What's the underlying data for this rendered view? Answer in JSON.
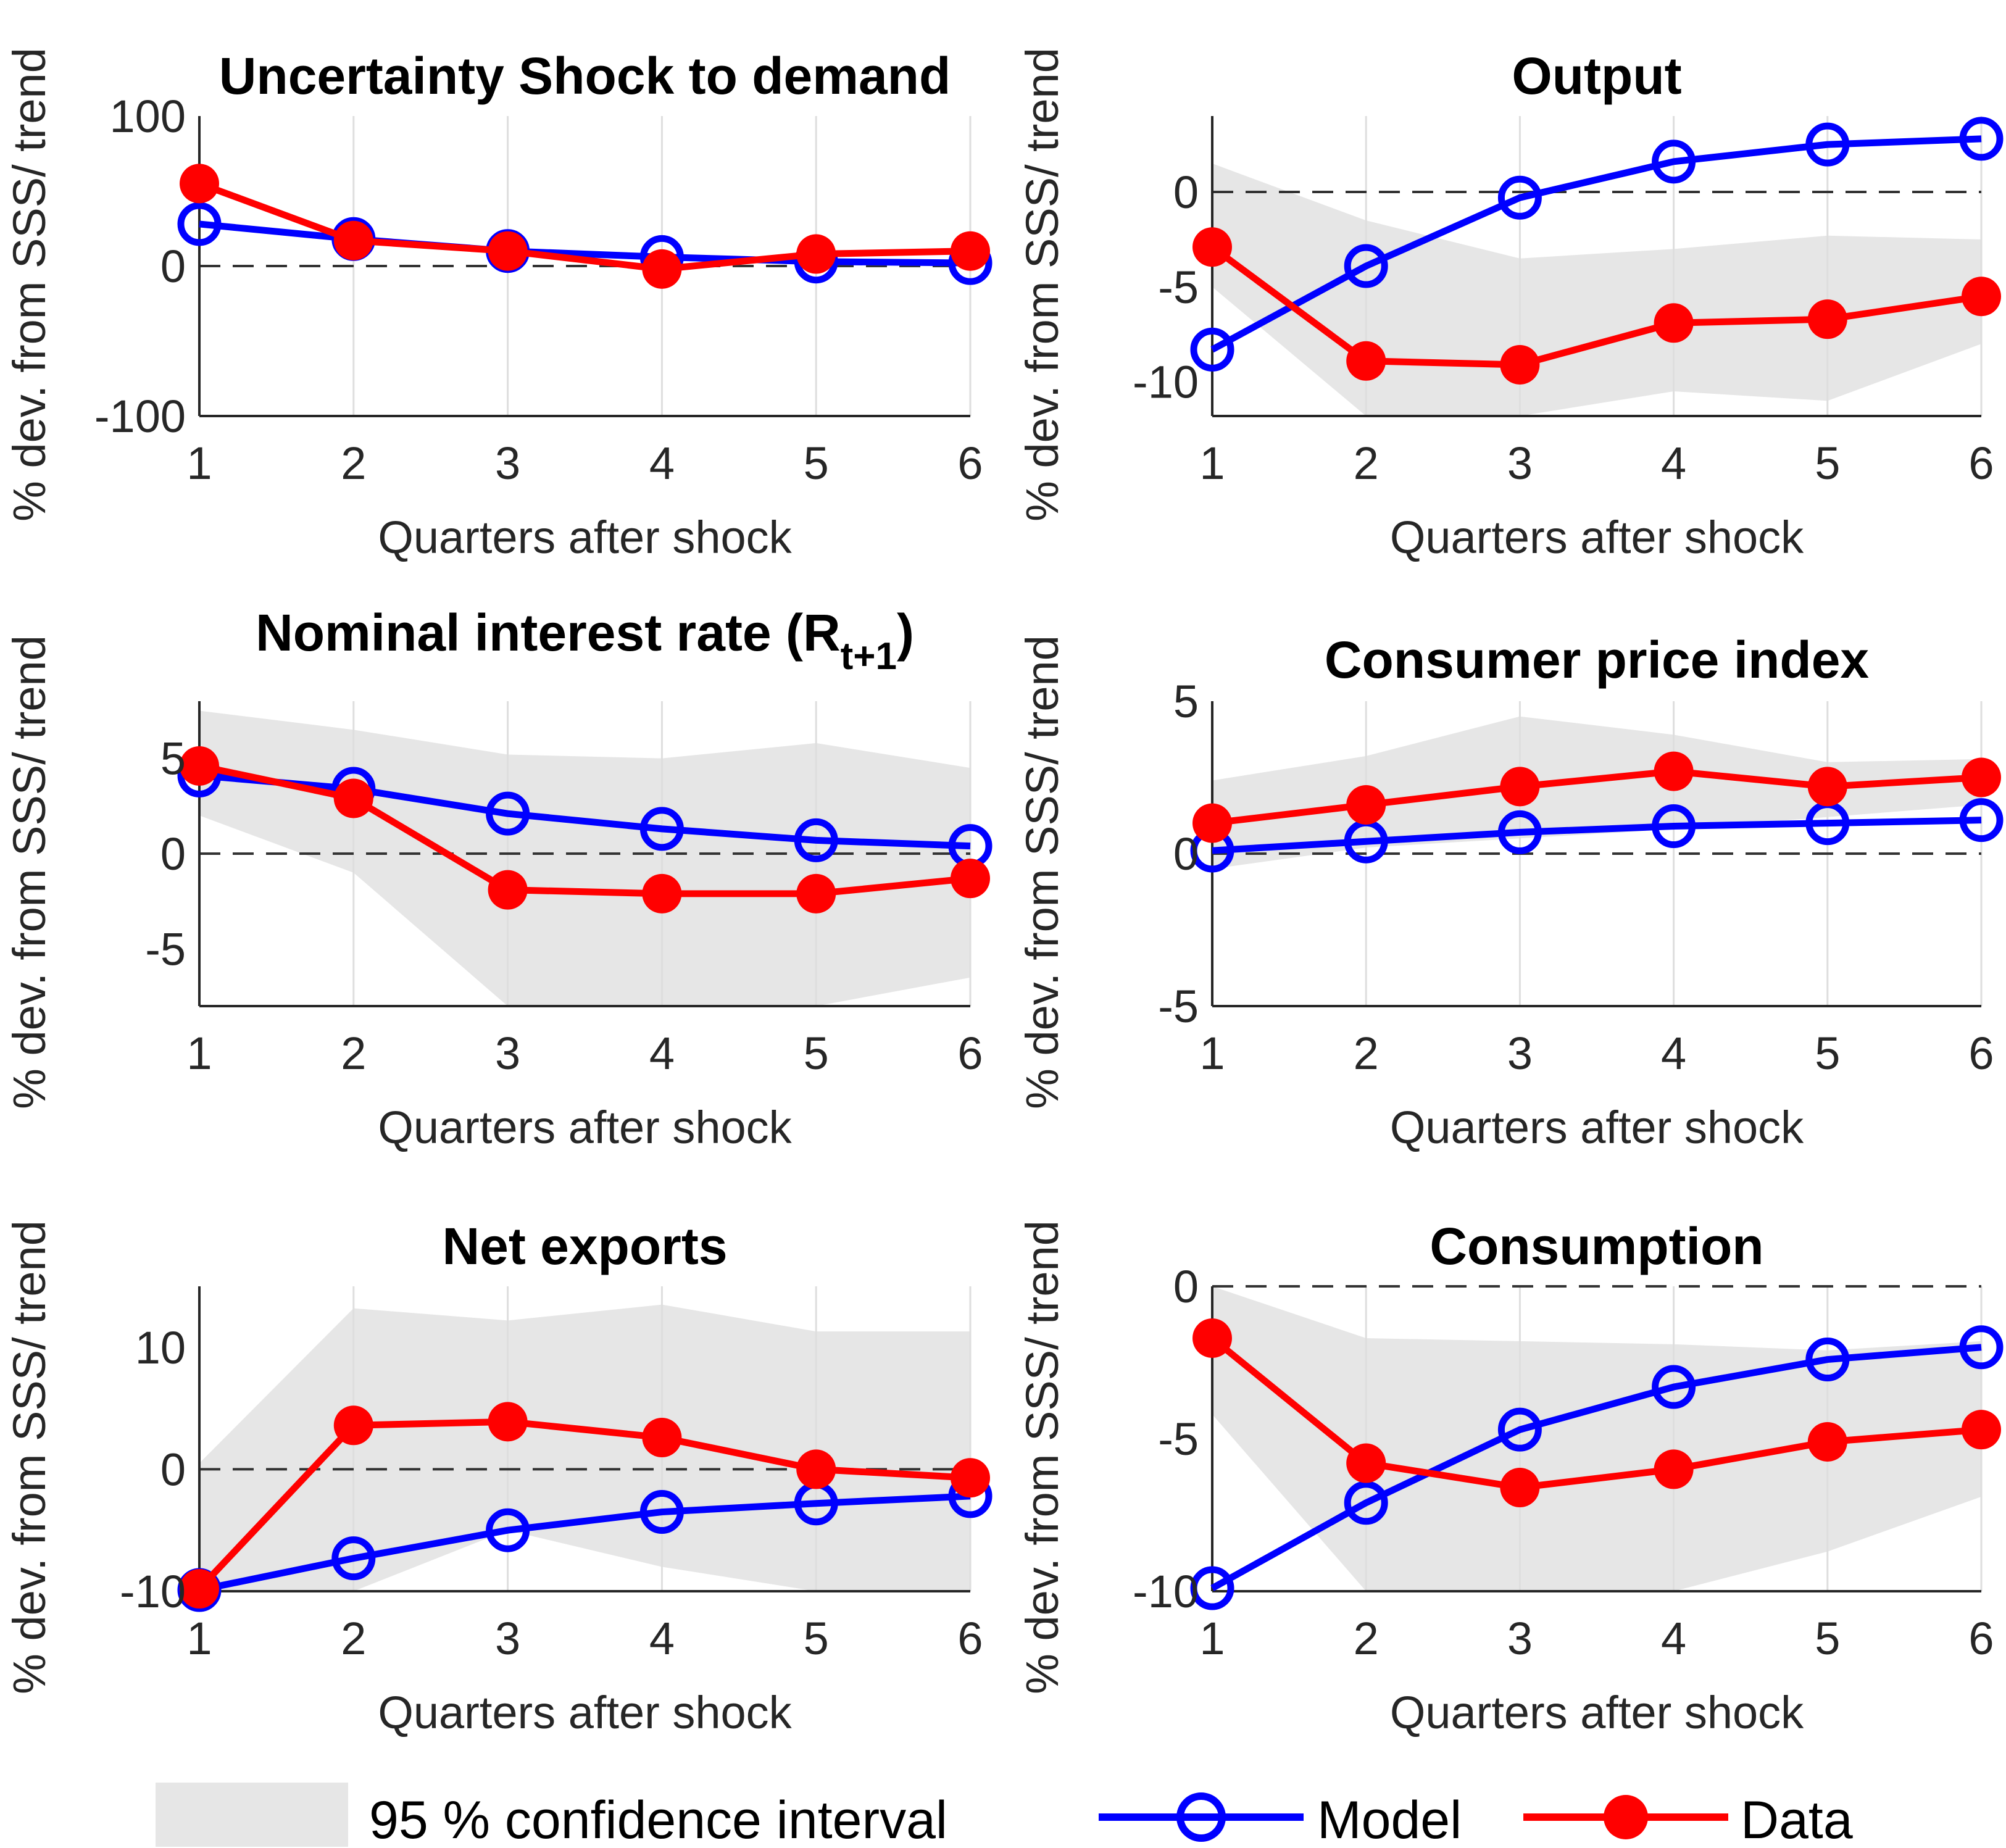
{
  "colors": {
    "model": "#0000ff",
    "data": "#ff0000",
    "ci": "#e6e6e6",
    "grid": "#dedede",
    "axis": "#262626"
  },
  "legend": {
    "ci_label": "95 % confidence interval",
    "model_label": "Model",
    "data_label": "Data"
  },
  "chart_data": [
    {
      "type": "line",
      "title": "Uncertainty Shock to demand",
      "xlabel": "Quarters after shock",
      "ylabel": "% dev. from SSS/ trend",
      "x": [
        1,
        2,
        3,
        4,
        5,
        6
      ],
      "xticks": [
        "1",
        "2",
        "3",
        "4",
        "5",
        "6"
      ],
      "ylim": [
        -100,
        100
      ],
      "yticks": [
        -100,
        0,
        100
      ],
      "ytick_labels": [
        "-100",
        "0",
        "100"
      ],
      "ci": null,
      "series": [
        {
          "name": "Model",
          "values": [
            28,
            18,
            10,
            6,
            3,
            2
          ]
        },
        {
          "name": "Data",
          "values": [
            55,
            17,
            10,
            -2,
            8,
            10
          ]
        }
      ]
    },
    {
      "type": "line",
      "title": "Output",
      "xlabel": "Quarters after shock",
      "ylabel": "% dev. from SSS/ trend",
      "x": [
        1,
        2,
        3,
        4,
        5,
        6
      ],
      "xticks": [
        "1",
        "2",
        "3",
        "4",
        "5",
        "6"
      ],
      "ylim": [
        -11.8,
        4
      ],
      "yticks": [
        -10,
        -5,
        0
      ],
      "ytick_labels": [
        "-10",
        "-5",
        "0"
      ],
      "ci": {
        "lower": [
          -5,
          -11.8,
          -11.8,
          -10.5,
          -11,
          -8
        ],
        "upper": [
          1.5,
          -1.5,
          -3.5,
          -3,
          -2.3,
          -2.5
        ]
      },
      "series": [
        {
          "name": "Model",
          "values": [
            -8.3,
            -3.9,
            -0.3,
            1.6,
            2.5,
            2.8
          ]
        },
        {
          "name": "Data",
          "values": [
            -2.9,
            -8.9,
            -9.1,
            -6.9,
            -6.7,
            -5.5
          ]
        }
      ]
    },
    {
      "type": "line",
      "title": "Nominal interest rate (R",
      "title_subscript": "t+1",
      "title_suffix": ")",
      "xlabel": "Quarters after shock",
      "ylabel": "% dev. from SSS/ trend",
      "x": [
        1,
        2,
        3,
        4,
        5,
        6
      ],
      "xticks": [
        "1",
        "2",
        "3",
        "4",
        "5",
        "6"
      ],
      "ylim": [
        -8,
        8
      ],
      "yticks": [
        -5,
        0,
        5
      ],
      "ytick_labels": [
        "-5",
        "0",
        "5"
      ],
      "ci": {
        "lower": [
          2,
          -1,
          -8,
          -8,
          -8,
          -6.5
        ],
        "upper": [
          7.5,
          6.5,
          5.2,
          5,
          5.8,
          4.5
        ]
      },
      "series": [
        {
          "name": "Model",
          "values": [
            4.1,
            3.4,
            2.1,
            1.3,
            0.7,
            0.4
          ]
        },
        {
          "name": "Data",
          "values": [
            4.6,
            2.9,
            -1.9,
            -2.1,
            -2.1,
            -1.3
          ]
        }
      ]
    },
    {
      "type": "line",
      "title": "Consumer price index",
      "xlabel": "Quarters after shock",
      "ylabel": "% dev. from SSS/ trend",
      "x": [
        1,
        2,
        3,
        4,
        5,
        6
      ],
      "xticks": [
        "1",
        "2",
        "3",
        "4",
        "5",
        "6"
      ],
      "ylim": [
        -5,
        5
      ],
      "yticks": [
        -5,
        0,
        5
      ],
      "ytick_labels": [
        "-5",
        "0",
        "5"
      ],
      "ci": {
        "lower": [
          -0.5,
          0.2,
          0.5,
          0.8,
          1.2,
          1.6
        ],
        "upper": [
          2.4,
          3.2,
          4.5,
          3.9,
          3.0,
          3.1
        ]
      },
      "series": [
        {
          "name": "Model",
          "values": [
            0.1,
            0.4,
            0.7,
            0.9,
            1.0,
            1.1
          ]
        },
        {
          "name": "Data",
          "values": [
            1.0,
            1.6,
            2.2,
            2.7,
            2.2,
            2.5
          ]
        }
      ]
    },
    {
      "type": "line",
      "title": "Net exports",
      "xlabel": "Quarters after shock",
      "ylabel": "% dev. from SSS/ trend",
      "x": [
        1,
        2,
        3,
        4,
        5,
        6
      ],
      "xticks": [
        "1",
        "2",
        "3",
        "4",
        "5",
        "6"
      ],
      "ylim": [
        -10,
        15
      ],
      "yticks": [
        -10,
        0,
        10
      ],
      "ytick_labels": [
        "-10",
        "0",
        "10"
      ],
      "ci": {
        "lower": [
          -10,
          -10,
          -5,
          -8,
          -10,
          -10
        ],
        "upper": [
          0.5,
          13.2,
          12.2,
          13.5,
          11.3,
          11.3
        ]
      },
      "series": [
        {
          "name": "Model",
          "values": [
            -9.9,
            -7.3,
            -5.0,
            -3.5,
            -2.8,
            -2.2
          ]
        },
        {
          "name": "Data",
          "values": [
            -9.8,
            3.6,
            3.9,
            2.6,
            0,
            -0.7
          ]
        }
      ]
    },
    {
      "type": "line",
      "title": "Consumption",
      "xlabel": "Quarters after shock",
      "ylabel": "% dev. from SSS/ trend",
      "x": [
        1,
        2,
        3,
        4,
        5,
        6
      ],
      "xticks": [
        "1",
        "2",
        "3",
        "4",
        "5",
        "6"
      ],
      "ylim": [
        -10,
        0
      ],
      "yticks": [
        -10,
        -5,
        0
      ],
      "ytick_labels": [
        "-10",
        "-5",
        "0"
      ],
      "ci": {
        "lower": [
          -4.2,
          -10,
          -10,
          -10,
          -8.7,
          -6.9
        ],
        "upper": [
          0,
          -1.7,
          -1.8,
          -1.9,
          -2.1,
          -1.8
        ]
      },
      "series": [
        {
          "name": "Model",
          "values": [
            -9.9,
            -7.1,
            -4.7,
            -3.3,
            -2.4,
            -2.0
          ]
        },
        {
          "name": "Data",
          "values": [
            -1.7,
            -5.8,
            -6.6,
            -6.0,
            -5.1,
            -4.7
          ]
        }
      ]
    }
  ]
}
